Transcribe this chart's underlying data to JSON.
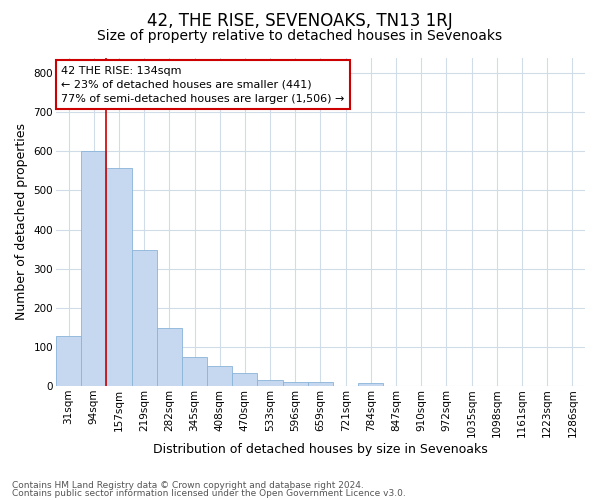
{
  "title": "42, THE RISE, SEVENOAKS, TN13 1RJ",
  "subtitle": "Size of property relative to detached houses in Sevenoaks",
  "xlabel": "Distribution of detached houses by size in Sevenoaks",
  "ylabel": "Number of detached properties",
  "categories": [
    "31sqm",
    "94sqm",
    "157sqm",
    "219sqm",
    "282sqm",
    "345sqm",
    "408sqm",
    "470sqm",
    "533sqm",
    "596sqm",
    "659sqm",
    "721sqm",
    "784sqm",
    "847sqm",
    "910sqm",
    "972sqm",
    "1035sqm",
    "1098sqm",
    "1161sqm",
    "1223sqm",
    "1286sqm"
  ],
  "values": [
    128,
    600,
    558,
    347,
    148,
    75,
    52,
    33,
    15,
    10,
    10,
    0,
    8,
    0,
    0,
    0,
    0,
    0,
    0,
    0,
    0
  ],
  "bar_color": "#c5d8f0",
  "bar_edge_color": "#8ab4d8",
  "annotation_line1": "42 THE RISE: 134sqm",
  "annotation_line2": "← 23% of detached houses are smaller (441)",
  "annotation_line3": "77% of semi-detached houses are larger (1,506) →",
  "vline_color": "#cc0000",
  "vline_x": 1.5,
  "ylim": [
    0,
    840
  ],
  "yticks": [
    0,
    100,
    200,
    300,
    400,
    500,
    600,
    700,
    800
  ],
  "footer1": "Contains HM Land Registry data © Crown copyright and database right 2024.",
  "footer2": "Contains public sector information licensed under the Open Government Licence v3.0.",
  "bg_color": "#ffffff",
  "plot_bg_color": "#ffffff",
  "grid_color": "#d0dce8",
  "title_fontsize": 12,
  "subtitle_fontsize": 10,
  "axis_label_fontsize": 9,
  "tick_fontsize": 7.5,
  "footer_fontsize": 6.5
}
